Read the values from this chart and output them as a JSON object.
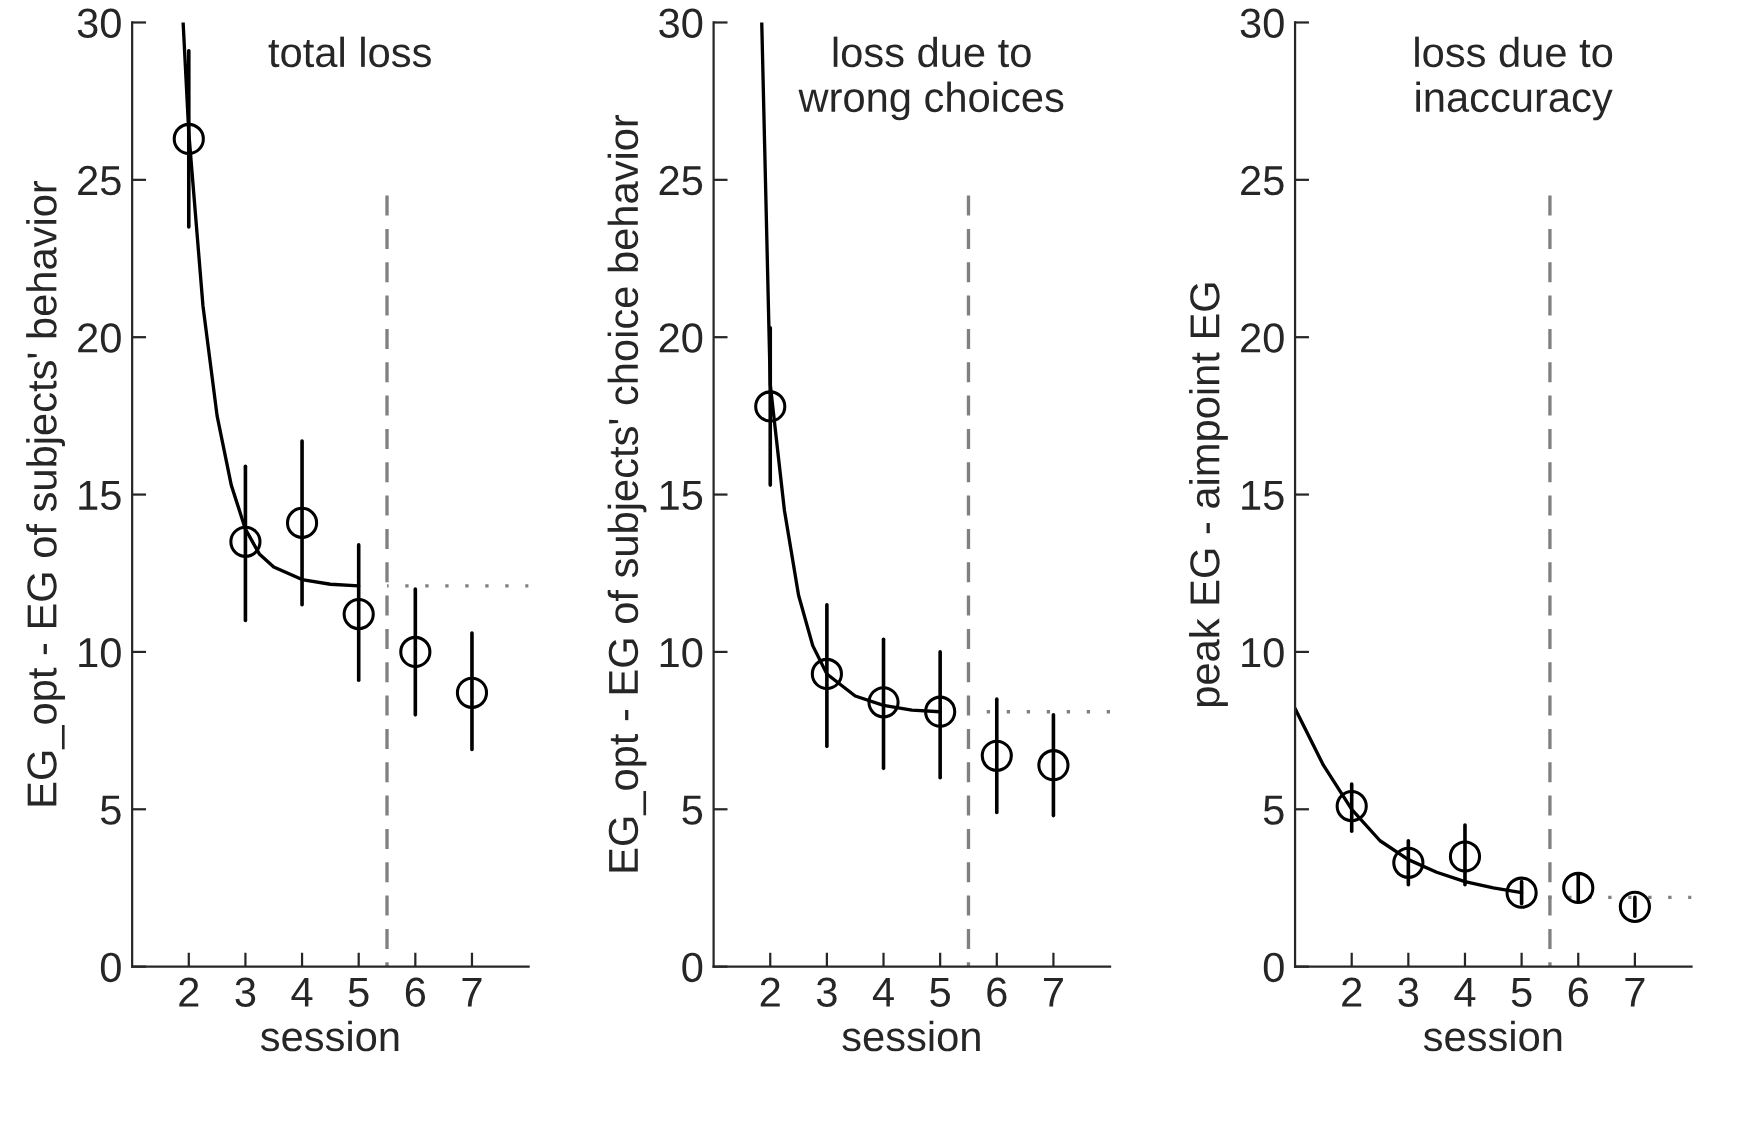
{
  "chart_data": [
    {
      "type": "scatter",
      "title": "total loss",
      "xlabel": "session",
      "ylabel": "EG_opt - EG of subjects' behavior",
      "xlim": [
        1,
        8
      ],
      "xticks": [
        2,
        3,
        4,
        5,
        6,
        7
      ],
      "ylim": [
        0,
        30
      ],
      "yticks": [
        0,
        5,
        10,
        15,
        20,
        25,
        30
      ],
      "grid": false,
      "legend": false,
      "series": [
        {
          "marker": "circle",
          "color": "#000000",
          "x": [
            2,
            3,
            4,
            5,
            6,
            7
          ],
          "values": [
            26.3,
            13.5,
            14.1,
            11.2,
            10.0,
            8.7
          ],
          "errors": [
            [
              23.5,
              29.1
            ],
            [
              11.0,
              15.9
            ],
            [
              11.5,
              16.7
            ],
            [
              9.1,
              13.4
            ],
            [
              8.0,
              12.0
            ],
            [
              6.9,
              10.6
            ]
          ]
        },
        {
          "type": "line",
          "line_style": "solid",
          "color": "#000000",
          "x": [
            1.9,
            2,
            2.25,
            2.5,
            2.75,
            3,
            3.25,
            3.5,
            4,
            4.5,
            5
          ],
          "values": [
            30,
            26.5,
            21,
            17.5,
            15.3,
            13.9,
            13.1,
            12.7,
            12.3,
            12.15,
            12.1
          ]
        },
        {
          "type": "line",
          "line_style": "dashed",
          "color": "#808080",
          "x": [
            5.5,
            5.5
          ],
          "values": [
            0,
            24.5
          ]
        },
        {
          "type": "line",
          "line_style": "dotted",
          "color": "#808080",
          "x": [
            5.5,
            8
          ],
          "values": [
            12.1,
            12.1
          ]
        }
      ]
    },
    {
      "type": "scatter",
      "title": "loss due to\nwrong choices",
      "xlabel": "session",
      "ylabel": "EG_opt - EG of subjects' choice behavior",
      "xlim": [
        1,
        8
      ],
      "xticks": [
        2,
        3,
        4,
        5,
        6,
        7
      ],
      "ylim": [
        0,
        30
      ],
      "yticks": [
        0,
        5,
        10,
        15,
        20,
        25,
        30
      ],
      "grid": false,
      "legend": false,
      "series": [
        {
          "marker": "circle",
          "color": "#000000",
          "x": [
            2,
            3,
            4,
            5,
            6,
            7
          ],
          "values": [
            17.8,
            9.3,
            8.4,
            8.1,
            6.7,
            6.4
          ],
          "errors": [
            [
              15.3,
              20.3
            ],
            [
              7.0,
              11.5
            ],
            [
              6.3,
              10.4
            ],
            [
              6.0,
              10.0
            ],
            [
              4.9,
              8.5
            ],
            [
              4.8,
              8.0
            ]
          ]
        },
        {
          "type": "line",
          "line_style": "solid",
          "color": "#000000",
          "x": [
            1.85,
            2,
            2.25,
            2.5,
            2.75,
            3,
            3.5,
            4,
            4.5,
            5
          ],
          "values": [
            30,
            18.5,
            14.5,
            11.8,
            10.2,
            9.3,
            8.6,
            8.3,
            8.15,
            8.1
          ]
        },
        {
          "type": "line",
          "line_style": "dashed",
          "color": "#808080",
          "x": [
            5.5,
            5.5
          ],
          "values": [
            0,
            24.5
          ]
        },
        {
          "type": "line",
          "line_style": "dotted",
          "color": "#808080",
          "x": [
            5.5,
            8
          ],
          "values": [
            8.1,
            8.1
          ]
        }
      ]
    },
    {
      "type": "scatter",
      "title": "loss due to\ninaccuracy",
      "xlabel": "session",
      "ylabel": "peak EG - aimpoint EG",
      "xlim": [
        1,
        8
      ],
      "xticks": [
        2,
        3,
        4,
        5,
        6,
        7
      ],
      "ylim": [
        0,
        30
      ],
      "yticks": [
        0,
        5,
        10,
        15,
        20,
        25,
        30
      ],
      "grid": false,
      "legend": false,
      "series": [
        {
          "marker": "circle",
          "color": "#000000",
          "x": [
            2,
            3,
            4,
            5,
            6,
            7
          ],
          "values": [
            5.1,
            3.3,
            3.5,
            2.35,
            2.5,
            1.9
          ],
          "errors": [
            [
              4.3,
              5.8
            ],
            [
              2.6,
              4.0
            ],
            [
              2.6,
              4.5
            ],
            [
              2.0,
              2.7
            ],
            [
              2.1,
              2.9
            ],
            [
              1.6,
              2.2
            ]
          ]
        },
        {
          "type": "line",
          "line_style": "solid",
          "color": "#000000",
          "x": [
            1,
            1.5,
            2,
            2.5,
            3,
            3.5,
            4,
            4.5,
            5
          ],
          "values": [
            8.2,
            6.4,
            5.0,
            4.0,
            3.4,
            3.0,
            2.7,
            2.5,
            2.35
          ]
        },
        {
          "type": "line",
          "line_style": "dashed",
          "color": "#808080",
          "x": [
            5.5,
            5.5
          ],
          "values": [
            0,
            24.5
          ]
        },
        {
          "type": "line",
          "line_style": "dotted",
          "color": "#808080",
          "x": [
            5.2,
            8
          ],
          "values": [
            2.2,
            2.2
          ]
        }
      ]
    }
  ]
}
